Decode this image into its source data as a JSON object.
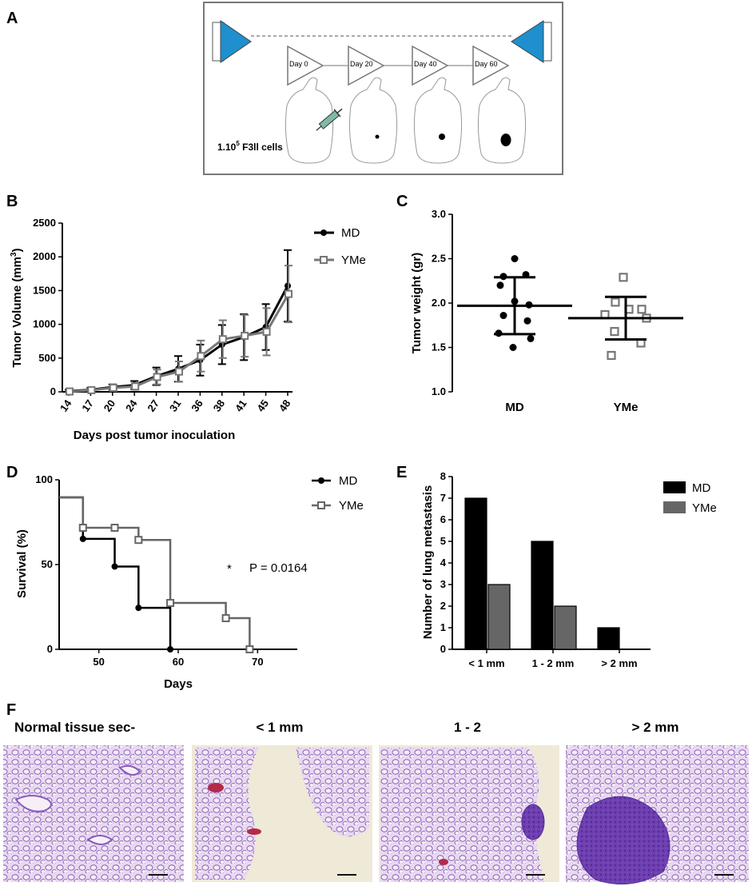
{
  "panels": {
    "A": {
      "letter": "A",
      "days": [
        "Day 0",
        "Day 20",
        "Day 40",
        "Day 60"
      ],
      "cells_prefix": "1.10",
      "cells_exponent": "5",
      "cells_suffix": " F3ll cells",
      "colors": {
        "triangle": "#1f8fce",
        "frame": "#777777"
      }
    },
    "B": {
      "letter": "B"
    },
    "C": {
      "letter": "C"
    },
    "D": {
      "letter": "D",
      "annotation_star": "*",
      "annotation_p": "P = 0.0164"
    },
    "E": {
      "letter": "E"
    },
    "F": {
      "letter": "F",
      "titles": [
        "Normal tissue sec-",
        "< 1 mm",
        "1 - 2",
        "> 2 mm"
      ]
    }
  },
  "chart_data": [
    {
      "panel": "B",
      "type": "line",
      "categories": [
        "14",
        "17",
        "20",
        "24",
        "27",
        "31",
        "36",
        "38",
        "41",
        "45",
        "48"
      ],
      "xlabel": "Days post tumor inoculation",
      "ylabel_main": "Tumor Volume (mm",
      "ylabel_sup": "3",
      "ylabel_end": ")",
      "ylim": [
        0,
        2500
      ],
      "yticks": [
        "0",
        "500",
        "1000",
        "1500",
        "2000",
        "2500"
      ],
      "legend_position": "top-right",
      "series": [
        {
          "name": "MD",
          "color": "#000000",
          "values": [
            10,
            30,
            70,
            100,
            230,
            340,
            470,
            700,
            810,
            960,
            1570
          ],
          "err": [
            20,
            30,
            40,
            60,
            130,
            190,
            230,
            290,
            340,
            340,
            530
          ]
        },
        {
          "name": "YMe",
          "color": "#777777",
          "values": [
            5,
            25,
            60,
            80,
            220,
            300,
            530,
            780,
            830,
            890,
            1450
          ],
          "err": [
            15,
            25,
            30,
            50,
            110,
            150,
            230,
            280,
            310,
            350,
            420
          ]
        }
      ]
    },
    {
      "panel": "C",
      "type": "scatter",
      "categories": [
        "MD",
        "YMe"
      ],
      "ylabel": "Tumor weight (gr)",
      "ylim": [
        1.0,
        3.0
      ],
      "yticks": [
        "1.0",
        "1.5",
        "2.0",
        "2.5",
        "3.0"
      ],
      "series": [
        {
          "name": "MD",
          "color": "#000000",
          "mean": 1.97,
          "sd": 0.32,
          "values": [
            2.5,
            2.3,
            2.32,
            2.2,
            2.02,
            1.98,
            1.86,
            1.8,
            1.66,
            1.6,
            1.5
          ]
        },
        {
          "name": "YMe",
          "color": "#777777",
          "mean": 1.83,
          "sd": 0.24,
          "values": [
            2.29,
            2.01,
            1.93,
            1.93,
            1.87,
            1.83,
            1.68,
            1.55,
            1.41
          ]
        }
      ]
    },
    {
      "panel": "D",
      "type": "line",
      "xlabel": "Days",
      "ylabel": "Survival (%)",
      "xlim": [
        45,
        75
      ],
      "ylim": [
        0,
        100
      ],
      "xticks": [
        "50",
        "60",
        "70"
      ],
      "yticks": [
        "0",
        "50",
        "100"
      ],
      "legend_position": "top-right",
      "series": [
        {
          "name": "MD",
          "color": "#000000",
          "steps": [
            [
              45,
              100
            ],
            [
              48,
              72.7
            ],
            [
              52,
              54.5
            ],
            [
              55,
              27.3
            ],
            [
              59,
              0
            ]
          ],
          "markers": [
            [
              48,
              72.7
            ],
            [
              52,
              54.5
            ],
            [
              55,
              27.3
            ],
            [
              59,
              0
            ]
          ]
        },
        {
          "name": "YMe",
          "color": "#666666",
          "steps": [
            [
              45,
              100
            ],
            [
              48,
              80
            ],
            [
              55,
              72
            ],
            [
              59,
              30.5
            ],
            [
              66,
              20.5
            ],
            [
              69,
              0
            ]
          ],
          "markers": [
            [
              48,
              80
            ],
            [
              52,
              80
            ],
            [
              55,
              72
            ],
            [
              59,
              30.5
            ],
            [
              66,
              20.5
            ],
            [
              69,
              0
            ]
          ]
        }
      ]
    },
    {
      "panel": "E",
      "type": "bar",
      "categories": [
        "< 1 mm",
        "1 - 2 mm",
        "> 2 mm"
      ],
      "ylabel": "Number of lung metastasis",
      "ylim": [
        0,
        8
      ],
      "yticks": [
        "0",
        "1",
        "2",
        "3",
        "4",
        "5",
        "6",
        "7",
        "8"
      ],
      "legend_position": "top-right",
      "series": [
        {
          "name": "MD",
          "color": "#000000",
          "values": [
            7,
            5,
            1
          ]
        },
        {
          "name": "YMe",
          "color": "#666666",
          "values": [
            3,
            2,
            0
          ]
        }
      ]
    }
  ]
}
